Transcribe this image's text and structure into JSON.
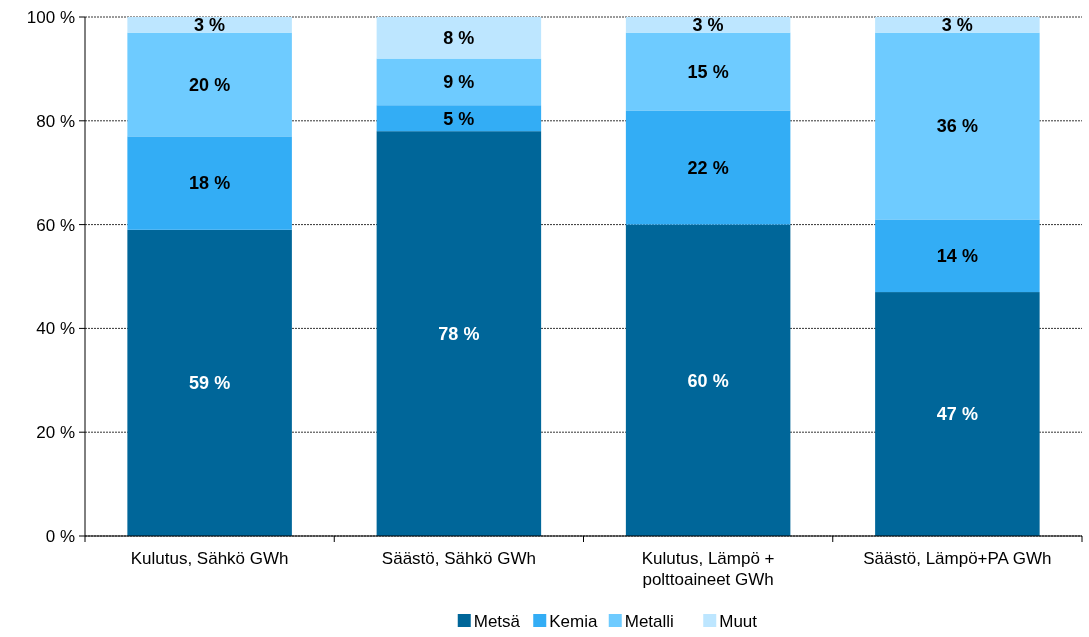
{
  "chart_data": {
    "type": "bar",
    "stacked": true,
    "categories": [
      "Kulutus, Sähkö GWh",
      "Säästö, Sähkö GWh",
      "Kulutus, Lämpö + polttoaineet GWh",
      "Säästö, Lämpö+PA GWh"
    ],
    "series": [
      {
        "name": "Metsä",
        "color": "#006699",
        "values": [
          59,
          78,
          60,
          47
        ],
        "value_labels": [
          "59 %",
          "78 %",
          "60 %",
          "47 %"
        ]
      },
      {
        "name": "Kemia",
        "color": "#33adf5",
        "values": [
          18,
          5,
          22,
          14
        ],
        "value_labels": [
          "18 %",
          "5 %",
          "22 %",
          "14 %"
        ]
      },
      {
        "name": "Metalli",
        "color": "#6ecbff",
        "values": [
          20,
          9,
          15,
          36
        ],
        "value_labels": [
          "20 %",
          "9 %",
          "15 %",
          "36 %"
        ]
      },
      {
        "name": "Muut",
        "color": "#bde6ff",
        "values": [
          3,
          8,
          3,
          3
        ],
        "value_labels": [
          "3 %",
          "8 %",
          "3 %",
          "3 %"
        ]
      }
    ],
    "ylim": [
      0,
      100
    ],
    "yticks": [
      {
        "value": 0,
        "label": "0 %"
      },
      {
        "value": 20,
        "label": "20 %"
      },
      {
        "value": 40,
        "label": "40 %"
      },
      {
        "value": 60,
        "label": "60 %"
      },
      {
        "value": 80,
        "label": "80 %"
      },
      {
        "value": 100,
        "label": "100 %"
      }
    ],
    "grid": "y",
    "legend": "bottom"
  }
}
